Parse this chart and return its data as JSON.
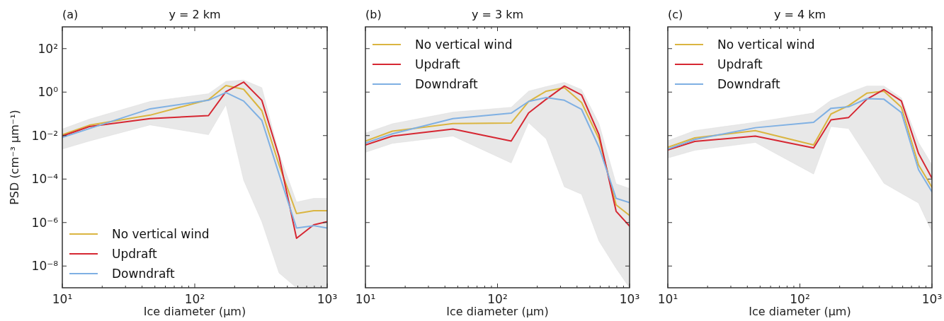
{
  "chart_data": [
    {
      "type": "line",
      "title": "y = 2 km",
      "annotations": [
        "(a)"
      ],
      "xlabel": "Ice diameter (μm)",
      "ylabel": "PSD (cm⁻³ μm⁻¹)",
      "log": "xy",
      "grid": false,
      "legend": "bottom left",
      "xlim": [
        10,
        1000
      ],
      "ylim": [
        1e-09,
        1000
      ],
      "xticks": [
        {
          "value": 10,
          "label": "10¹"
        },
        {
          "value": 20,
          "label": null
        },
        {
          "value": 30,
          "label": null
        },
        {
          "value": 40,
          "label": null
        },
        {
          "value": 50,
          "label": null
        },
        {
          "value": 60,
          "label": null
        },
        {
          "value": 70,
          "label": null
        },
        {
          "value": 80,
          "label": null
        },
        {
          "value": 90,
          "label": null
        },
        {
          "value": 100,
          "label": "10²"
        },
        {
          "value": 200,
          "label": null
        },
        {
          "value": 300,
          "label": null
        },
        {
          "value": 400,
          "label": null
        },
        {
          "value": 500,
          "label": null
        },
        {
          "value": 600,
          "label": null
        },
        {
          "value": 700,
          "label": null
        },
        {
          "value": 800,
          "label": null
        },
        {
          "value": 900,
          "label": null
        },
        {
          "value": 1000,
          "label": "10³"
        }
      ],
      "yticks": [
        {
          "value": 1e-08,
          "label": "10⁻⁸"
        },
        {
          "value": 1e-06,
          "label": "10⁻⁶"
        },
        {
          "value": 0.0001,
          "label": "10⁻⁴"
        },
        {
          "value": 0.01,
          "label": "10⁻²"
        },
        {
          "value": 1,
          "label": "10⁰"
        },
        {
          "value": 100,
          "label": "10²"
        }
      ],
      "x": [
        10,
        16,
        46,
        127,
        172,
        234,
        321,
        433,
        587,
        791,
        1000
      ],
      "series": [
        {
          "name": "No vertical wind",
          "color": "#dab540",
          "values": [
            0.011,
            0.03,
            0.087,
            0.45,
            2.0,
            1.35,
            0.14,
            0.00045,
            2.6e-06,
            3.5e-06,
            3.5e-06
          ],
          "lower": [
            0.0024,
            0.0056,
            0.031,
            0.011,
            0.26,
            8.9e-05,
            1.1e-06,
            4.8e-09,
            1e-09,
            1e-09,
            1e-09
          ],
          "upper": [
            0.02,
            0.057,
            0.37,
            0.84,
            3.1,
            3.6,
            1.6,
            0.0015,
            8.7e-06,
            1.3e-05,
            1.3e-05
          ]
        },
        {
          "name": "Updraft",
          "color": "#d62732",
          "values": [
            0.0095,
            0.026,
            0.06,
            0.083,
            1.05,
            2.9,
            0.42,
            0.0011,
            1.9e-07,
            7.8e-07,
            1.1e-06
          ]
        },
        {
          "name": "Downdraft",
          "color": "#7fb0e3",
          "values": [
            0.0083,
            0.021,
            0.17,
            0.42,
            0.95,
            0.39,
            0.05,
            0.00017,
            5.6e-07,
            7.2e-07,
            5.6e-07
          ]
        }
      ]
    },
    {
      "type": "line",
      "title": "y = 3 km",
      "annotations": [
        "(b)"
      ],
      "xlabel": "Ice diameter (μm)",
      "log": "xy",
      "grid": false,
      "legend": "top left",
      "tick_labels": "x",
      "xlim": [
        10,
        1000
      ],
      "ylim": [
        1e-09,
        1000
      ],
      "xticks": [
        {
          "value": 10,
          "label": "10¹"
        },
        {
          "value": 20,
          "label": null
        },
        {
          "value": 30,
          "label": null
        },
        {
          "value": 40,
          "label": null
        },
        {
          "value": 50,
          "label": null
        },
        {
          "value": 60,
          "label": null
        },
        {
          "value": 70,
          "label": null
        },
        {
          "value": 80,
          "label": null
        },
        {
          "value": 90,
          "label": null
        },
        {
          "value": 100,
          "label": "10²"
        },
        {
          "value": 200,
          "label": null
        },
        {
          "value": 300,
          "label": null
        },
        {
          "value": 400,
          "label": null
        },
        {
          "value": 500,
          "label": null
        },
        {
          "value": 600,
          "label": null
        },
        {
          "value": 700,
          "label": null
        },
        {
          "value": 800,
          "label": null
        },
        {
          "value": 900,
          "label": null
        },
        {
          "value": 1000,
          "label": "10³"
        }
      ],
      "yticks": [
        {
          "value": 1e-08,
          "label": null
        },
        {
          "value": 1e-06,
          "label": null
        },
        {
          "value": 0.0001,
          "label": null
        },
        {
          "value": 0.01,
          "label": null
        },
        {
          "value": 1,
          "label": null
        },
        {
          "value": 100,
          "label": null
        }
      ],
      "x": [
        10,
        16,
        46,
        127,
        172,
        234,
        321,
        433,
        587,
        791,
        1000
      ],
      "series": [
        {
          "name": "No vertical wind",
          "color": "#dab540",
          "values": [
            0.0056,
            0.016,
            0.036,
            0.038,
            0.37,
            1.1,
            1.6,
            0.33,
            0.007,
            6.5e-06,
            2.1e-06
          ],
          "lower": [
            0.0017,
            0.0044,
            0.0095,
            0.00055,
            0.039,
            0.007,
            4.4e-05,
            2e-05,
            1.4e-07,
            7.8e-09,
            1e-09
          ],
          "upper": [
            0.013,
            0.035,
            0.12,
            0.2,
            1.1,
            1.8,
            2.8,
            1.3,
            0.035,
            6e-05,
            3.7e-05
          ]
        },
        {
          "name": "Updraft",
          "color": "#d62732",
          "values": [
            0.0037,
            0.0095,
            0.02,
            0.0056,
            0.11,
            0.47,
            1.9,
            0.74,
            0.011,
            3.3e-06,
            6.9e-07
          ]
        },
        {
          "name": "Downdraft",
          "color": "#7fb0e3",
          "values": [
            0.0045,
            0.012,
            0.06,
            0.107,
            0.37,
            0.56,
            0.42,
            0.16,
            0.0029,
            1.3e-05,
            8.3e-06
          ]
        }
      ]
    },
    {
      "type": "line",
      "title": "y = 4 km",
      "annotations": [
        "(c)"
      ],
      "xlabel": "Ice diameter (μm)",
      "log": "xy",
      "grid": false,
      "legend": "top left",
      "tick_labels": "x",
      "xlim": [
        10,
        1000
      ],
      "ylim": [
        1e-09,
        1000
      ],
      "xticks": [
        {
          "value": 10,
          "label": "10¹"
        },
        {
          "value": 20,
          "label": null
        },
        {
          "value": 30,
          "label": null
        },
        {
          "value": 40,
          "label": null
        },
        {
          "value": 50,
          "label": null
        },
        {
          "value": 60,
          "label": null
        },
        {
          "value": 70,
          "label": null
        },
        {
          "value": 80,
          "label": null
        },
        {
          "value": 90,
          "label": null
        },
        {
          "value": 100,
          "label": "10²"
        },
        {
          "value": 200,
          "label": null
        },
        {
          "value": 300,
          "label": null
        },
        {
          "value": 400,
          "label": null
        },
        {
          "value": 500,
          "label": null
        },
        {
          "value": 600,
          "label": null
        },
        {
          "value": 700,
          "label": null
        },
        {
          "value": 800,
          "label": null
        },
        {
          "value": 900,
          "label": null
        },
        {
          "value": 1000,
          "label": "10³"
        }
      ],
      "yticks": [
        {
          "value": 1e-08,
          "label": null
        },
        {
          "value": 1e-06,
          "label": null
        },
        {
          "value": 0.0001,
          "label": null
        },
        {
          "value": 0.01,
          "label": null
        },
        {
          "value": 1,
          "label": null
        },
        {
          "value": 100,
          "label": null
        }
      ],
      "x": [
        10,
        16,
        46,
        127,
        172,
        234,
        321,
        433,
        587,
        791,
        1000
      ],
      "series": [
        {
          "name": "No vertical wind",
          "color": "#dab540",
          "values": [
            0.0029,
            0.0078,
            0.017,
            0.0037,
            0.098,
            0.24,
            0.89,
            1.1,
            0.2,
            0.00045,
            4.2e-05
          ],
          "lower": [
            0.00093,
            0.0021,
            0.0048,
            0.00017,
            0.026,
            0.021,
            0.0011,
            6.4e-05,
            2.2e-05,
            7.9e-06,
            3.7e-07
          ],
          "upper": [
            0.0058,
            0.017,
            0.041,
            0.11,
            0.42,
            0.93,
            1.9,
            1.9,
            0.54,
            0.0048,
            0.00045
          ]
        },
        {
          "name": "Updraft",
          "color": "#d62732",
          "values": [
            0.0022,
            0.0054,
            0.0095,
            0.0027,
            0.053,
            0.068,
            0.47,
            1.3,
            0.39,
            0.0015,
            0.00011
          ]
        },
        {
          "name": "Downdraft",
          "color": "#7fb0e3",
          "values": [
            0.0024,
            0.0066,
            0.023,
            0.041,
            0.18,
            0.21,
            0.5,
            0.47,
            0.115,
            0.00027,
            2.6e-05
          ]
        }
      ]
    }
  ]
}
